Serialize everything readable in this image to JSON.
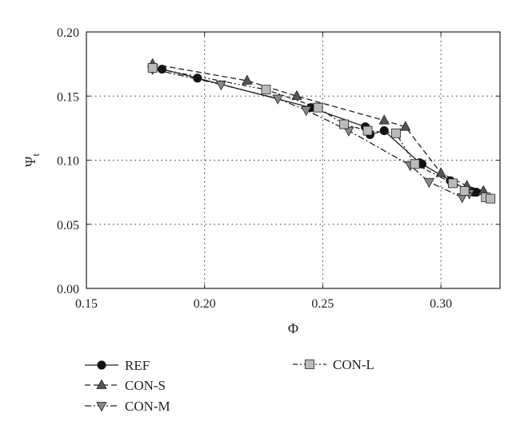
{
  "chart_data": {
    "type": "line",
    "title": "",
    "xlabel": "Φ",
    "ylabel_main": "Ψ",
    "ylabel_sub": "t",
    "xlim": [
      0.15,
      0.325
    ],
    "ylim": [
      0.0,
      0.2
    ],
    "xticks": [
      "0.15",
      "0.20",
      "0.25",
      "0.30"
    ],
    "xtick_values": [
      0.15,
      0.2,
      0.25,
      0.3
    ],
    "yticks": [
      "0.00",
      "0.05",
      "0.10",
      "0.15",
      "0.20"
    ],
    "ytick_values": [
      0.0,
      0.05,
      0.1,
      0.15,
      0.2
    ],
    "grid": "dotted at major ticks",
    "legend_placement": "below plot",
    "series": [
      {
        "name": "REF",
        "line_style": "solid",
        "marker": "circle",
        "marker_color": "#111111",
        "points": [
          [
            0.182,
            0.171
          ],
          [
            0.197,
            0.164
          ],
          [
            0.245,
            0.141
          ],
          [
            0.268,
            0.126
          ],
          [
            0.27,
            0.12
          ],
          [
            0.276,
            0.123
          ],
          [
            0.291,
            0.098
          ],
          [
            0.292,
            0.097
          ],
          [
            0.304,
            0.084
          ],
          [
            0.312,
            0.076
          ],
          [
            0.314,
            0.075
          ],
          [
            0.315,
            0.075
          ]
        ]
      },
      {
        "name": "CON-S",
        "line_style": "dashed",
        "marker": "triangle-up",
        "marker_color": "#555555",
        "points": [
          [
            0.178,
            0.175
          ],
          [
            0.218,
            0.162
          ],
          [
            0.239,
            0.15
          ],
          [
            0.276,
            0.131
          ],
          [
            0.285,
            0.126
          ],
          [
            0.3,
            0.09
          ],
          [
            0.311,
            0.08
          ],
          [
            0.318,
            0.076
          ]
        ]
      },
      {
        "name": "CON-M",
        "line_style": "dash-dot",
        "marker": "triangle-down",
        "marker_color": "#888888",
        "points": [
          [
            0.178,
            0.171
          ],
          [
            0.207,
            0.159
          ],
          [
            0.231,
            0.148
          ],
          [
            0.243,
            0.139
          ],
          [
            0.261,
            0.123
          ],
          [
            0.287,
            0.096
          ],
          [
            0.295,
            0.083
          ],
          [
            0.309,
            0.071
          ],
          [
            0.312,
            0.074
          ]
        ]
      },
      {
        "name": "CON-L",
        "line_style": "dash-dot-dot",
        "marker": "square",
        "marker_color": "#bbbbbb",
        "points": [
          [
            0.178,
            0.172
          ],
          [
            0.226,
            0.155
          ],
          [
            0.248,
            0.141
          ],
          [
            0.259,
            0.128
          ],
          [
            0.269,
            0.123
          ],
          [
            0.281,
            0.121
          ],
          [
            0.289,
            0.097
          ],
          [
            0.305,
            0.082
          ],
          [
            0.31,
            0.076
          ],
          [
            0.319,
            0.071
          ],
          [
            0.321,
            0.07
          ]
        ]
      }
    ]
  }
}
